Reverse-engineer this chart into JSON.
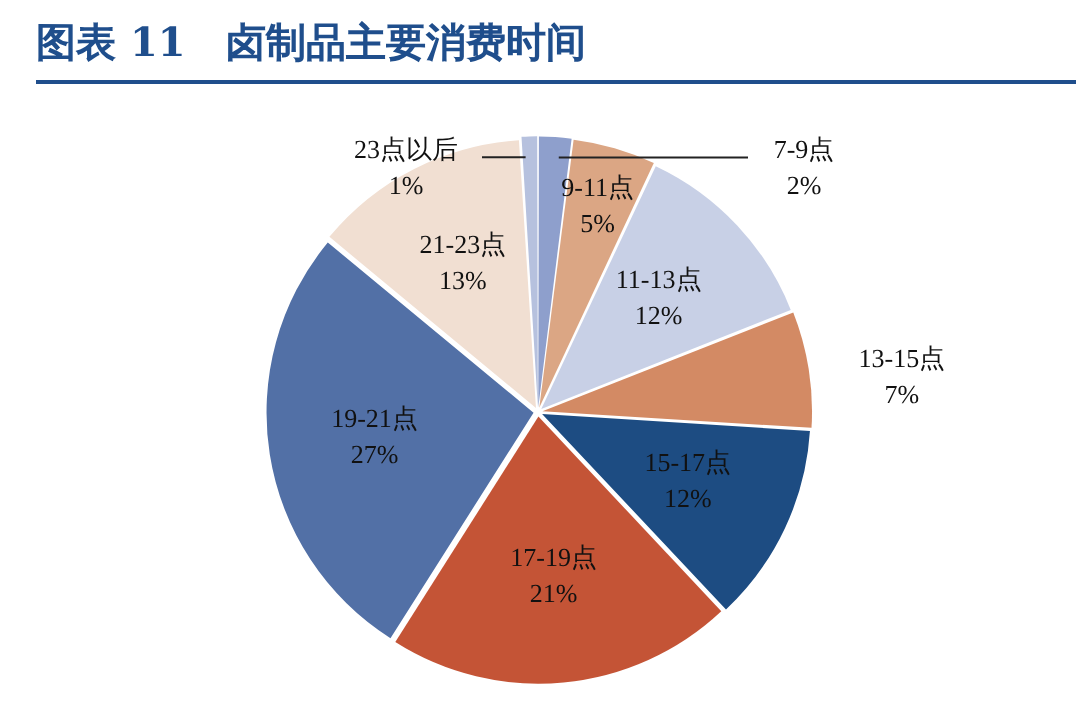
{
  "chart_data": {
    "type": "pie",
    "title": "图表 11　卤制品主要消费时间",
    "categories": [
      "7-9点",
      "9-11点",
      "11-13点",
      "13-15点",
      "15-17点",
      "17-19点",
      "19-21点",
      "21-23点",
      "23点以后"
    ],
    "values": [
      2,
      5,
      12,
      7,
      12,
      21,
      27,
      13,
      1
    ],
    "colors": [
      "#8e9fcc",
      "#dba684",
      "#c8d0e6",
      "#d38a64",
      "#1d4c82",
      "#c45436",
      "#5270a6",
      "#f1dfd2",
      "#b6c1de"
    ],
    "value_labels": [
      "2%",
      "5%",
      "12%",
      "7%",
      "12%",
      "21%",
      "27%",
      "13%",
      "1%"
    ],
    "legend": false
  }
}
